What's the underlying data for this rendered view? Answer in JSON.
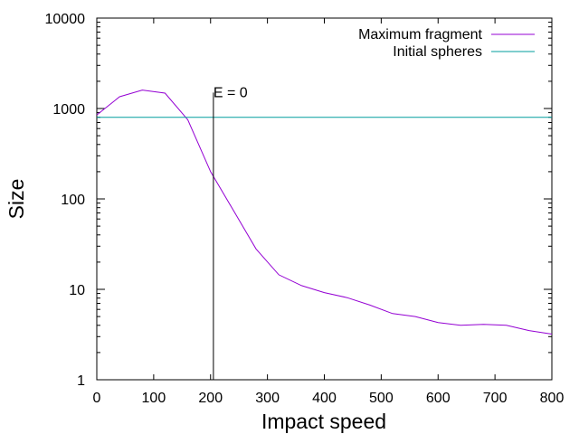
{
  "chart_data": {
    "type": "line",
    "title": "",
    "xlabel": "Impact speed",
    "ylabel": "Size",
    "xlim": [
      0,
      800
    ],
    "ylim": [
      1,
      10000
    ],
    "yscale": "log",
    "grid": false,
    "legend_position": "top-right",
    "x_ticks": [
      "0",
      "100",
      "200",
      "300",
      "400",
      "500",
      "600",
      "700",
      "800"
    ],
    "y_ticks": [
      "1",
      "10",
      "100",
      "1000",
      "10000"
    ],
    "series": [
      {
        "name": "Maximum fragment",
        "color": "#9400d3",
        "x": [
          0,
          40,
          80,
          120,
          160,
          200,
          240,
          280,
          320,
          360,
          400,
          440,
          480,
          520,
          560,
          600,
          640,
          680,
          720,
          760,
          800
        ],
        "y": [
          850,
          1350,
          1600,
          1480,
          750,
          200,
          75,
          28,
          14.5,
          11,
          9.2,
          8.1,
          6.7,
          5.4,
          5.0,
          4.3,
          4.0,
          4.1,
          4.0,
          3.5,
          3.2
        ]
      },
      {
        "name": "Initial spheres",
        "color": "#009e9e",
        "x": [
          0,
          800
        ],
        "y": [
          800,
          800
        ]
      }
    ],
    "annotations": [
      {
        "text": "E = 0",
        "x": 205
      }
    ]
  }
}
